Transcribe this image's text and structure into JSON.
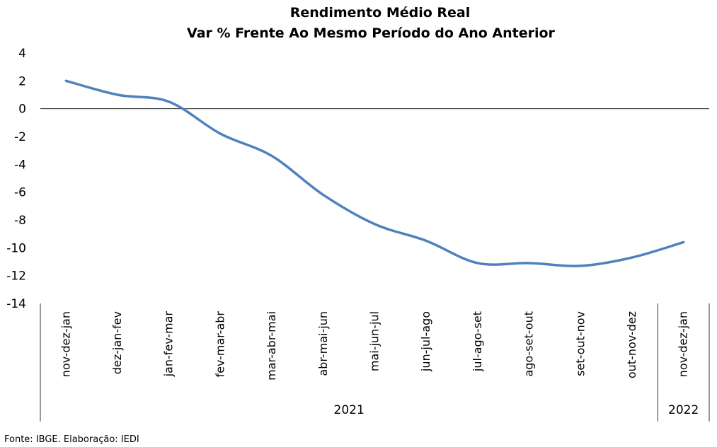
{
  "chart_data": {
    "type": "line",
    "title": "Rendimento Médio Real",
    "subtitle": "Var % Frente Ao Mesmo Período do Ano Anterior",
    "xlabel": "",
    "ylabel": "",
    "categories": [
      "nov-dez-jan",
      "dez-jan-fev",
      "jan-fev-mar",
      "fev-mar-abr",
      "mar-abr-mai",
      "abr-mai-jun",
      "mai-jun-jul",
      "jun-jul-ago",
      "jul-ago-set",
      "ago-set-out",
      "set-out-nov",
      "out-nov-dez",
      "nov-dez-jan"
    ],
    "series": [
      {
        "values": [
          2.0,
          1.0,
          0.5,
          -1.8,
          -3.4,
          -6.2,
          -8.3,
          -9.5,
          -11.1,
          -11.1,
          -11.3,
          -10.7,
          -9.6
        ]
      }
    ],
    "groups": [
      {
        "label": "2021",
        "start": 0,
        "end": 11
      },
      {
        "label": "2022",
        "start": 12,
        "end": 12
      }
    ],
    "yticks": [
      4,
      2,
      0,
      -2,
      -4,
      -6,
      -8,
      -10,
      -12,
      -14
    ],
    "ylim": [
      -14,
      4
    ],
    "grid": false,
    "legend": "none",
    "line_color": "#4f81bd"
  },
  "footer": "Fonte: IBGE. Elaboração: IEDI"
}
